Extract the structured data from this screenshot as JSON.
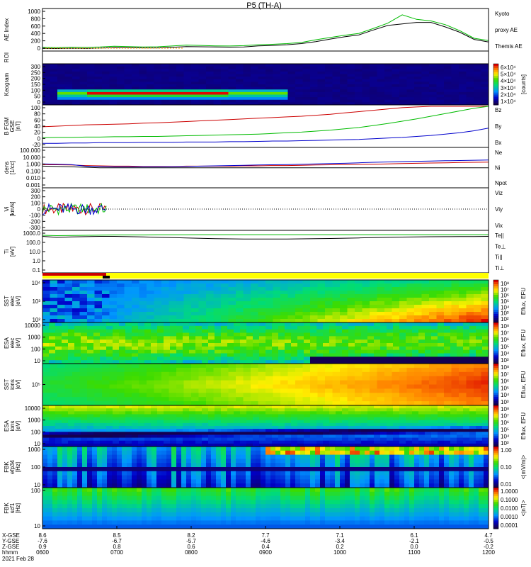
{
  "chart_data": {
    "type": "spectrogram-stack",
    "title": "P5 (TH-A)",
    "date": "2021 Feb 28",
    "colors": {
      "red": "#cc0000",
      "green": "#00bb00",
      "blue": "#0000cc",
      "black": "#000000",
      "orange": "#ff9900"
    },
    "panels": [
      {
        "id": "ae",
        "ylabel": "AE Index",
        "yticks": [
          "1000",
          "800",
          "600",
          "400",
          "200",
          "0"
        ],
        "legend": [
          {
            "text": "Kyoto",
            "color": "#00bb00"
          },
          {
            "text": "proxy AE",
            "color": "#00bb00"
          },
          {
            "text": "Themis AE",
            "color": "#000000"
          }
        ],
        "series": [
          {
            "name": "Kyoto proxy AE",
            "values": [
              60,
              55,
              65,
              60,
              70,
              90,
              80,
              70,
              75,
              95,
              120,
              110,
              100,
              95,
              105,
              130,
              140,
              160,
              190,
              260,
              320,
              380,
              430,
              560,
              700,
              920,
              800,
              760,
              660,
              500,
              300,
              240
            ]
          },
          {
            "name": "Themis AE",
            "values": [
              30,
              28,
              35,
              30,
              40,
              55,
              50,
              45,
              45,
              60,
              80,
              75,
              70,
              65,
              70,
              100,
              110,
              130,
              160,
              210,
              280,
              340,
              390,
              520,
              640,
              680,
              720,
              720,
              600,
              460,
              270,
              200
            ]
          }
        ]
      },
      {
        "id": "roi",
        "ylabel": "ROI"
      },
      {
        "id": "keogram",
        "ylabel": "Keogram",
        "yticks": [
          "300",
          "250",
          "200",
          "150",
          "100",
          "50",
          "0"
        ],
        "cbar_ticks": [
          "6×10⁴",
          "5×10⁴",
          "4×10⁴",
          "3×10⁴",
          "2×10⁴",
          "1×10⁴"
        ],
        "cbar_label": "[counts]"
      },
      {
        "id": "bfgm",
        "ylabel": "B FGM",
        "ylabel2": "GSE",
        "ylabel3": "[nT]",
        "yticks": [
          "100",
          "80",
          "60",
          "40",
          "20",
          "0",
          "-20"
        ],
        "legend": [
          {
            "text": "Bz",
            "color": "#cc0000"
          },
          {
            "text": "By",
            "color": "#00bb00"
          },
          {
            "text": "Bx",
            "color": "#0000cc"
          }
        ],
        "series": [
          {
            "name": "Bz",
            "values": [
              38,
              40,
              42,
              44,
              45,
              46,
              47,
              49,
              50,
              52,
              54,
              56,
              58,
              60,
              62,
              64,
              66,
              68,
              70,
              73,
              76,
              80,
              84,
              88,
              92,
              96,
              98,
              100,
              100,
              100,
              100,
              100
            ]
          },
          {
            "name": "By",
            "values": [
              5,
              6,
              6,
              7,
              7,
              8,
              8,
              9,
              9,
              10,
              11,
              12,
              13,
              14,
              15,
              16,
              18,
              20,
              22,
              25,
              28,
              32,
              36,
              42,
              48,
              55,
              62,
              70,
              78,
              86,
              94,
              100
            ]
          },
          {
            "name": "Bx",
            "values": [
              -12,
              -12,
              -11,
              -11,
              -10,
              -10,
              -10,
              -9,
              -9,
              -9,
              -8,
              -8,
              -8,
              -7,
              -7,
              -6,
              -5,
              -5,
              -4,
              -3,
              -2,
              -1,
              0,
              2,
              4,
              6,
              9,
              12,
              16,
              20,
              26,
              34
            ]
          }
        ]
      },
      {
        "id": "dens",
        "ylabel": "dens",
        "ylabel2": "[1/cc]",
        "yticks": [
          "100.000",
          "10.000",
          "1.000",
          "0.100",
          "0.010",
          "0.001"
        ],
        "legend": [
          {
            "text": "Ne",
            "color": "#cc0000"
          },
          {
            "text": "Ni",
            "color": "#000000"
          },
          {
            "text": "Npot",
            "color": "#0000cc"
          }
        ],
        "series": [
          {
            "name": "Ne",
            "values": [
              0.8,
              0.75,
              0.7,
              0.6,
              0.55,
              0.5,
              0.5,
              0.45,
              0.45,
              0.45,
              0.5,
              0.5,
              0.5,
              0.5,
              0.55,
              0.55,
              0.6,
              0.6,
              0.65,
              0.7,
              0.75,
              0.8,
              0.85,
              0.9,
              1.0,
              1.1,
              1.2,
              1.3,
              1.4,
              1.5,
              1.6,
              1.7
            ]
          },
          {
            "name": "Ni",
            "values": [
              0.5,
              0.45,
              0.4,
              0.35,
              0.3,
              0.3,
              0.3,
              0.3,
              0.3,
              0.3,
              0.3,
              0.3,
              0.3,
              0.3,
              0.3,
              0.3,
              0.3,
              0.3,
              0.3,
              0.3,
              0.3,
              0.3,
              0.3,
              0.3,
              0.3,
              0.3,
              0.3,
              0.3,
              0.3,
              0.3,
              0.3,
              0.3
            ]
          },
          {
            "name": "Npot",
            "values": [
              1.0,
              0.9,
              0.8,
              0.5,
              0.45,
              0.4,
              0.4,
              0.4,
              0.4,
              0.42,
              0.45,
              0.5,
              0.55,
              0.6,
              0.65,
              0.7,
              0.75,
              0.8,
              0.9,
              1.0,
              1.1,
              1.2,
              1.4,
              1.6,
              1.8,
              2.0,
              2.2,
              2.4,
              2.6,
              2.8,
              3.0,
              3.2
            ]
          }
        ]
      },
      {
        "id": "vi",
        "ylabel": "Vi",
        "ylabel2": "[km/s]",
        "yticks": [
          "300",
          "200",
          "100",
          "0",
          "-100",
          "-200",
          "-300"
        ],
        "legend": [
          {
            "text": "Viz",
            "color": "#cc0000"
          },
          {
            "text": "Viy",
            "color": "#00bb00"
          },
          {
            "text": "Vix",
            "color": "#0000cc"
          }
        ]
      },
      {
        "id": "temp",
        "ylabel": "Ti",
        "ylabel2": "[eV]",
        "yticks": [
          "1000.0",
          "100.0",
          "10.0",
          "1.0",
          "0.1"
        ],
        "legend": [
          {
            "text": "Te||",
            "color": "#000000"
          },
          {
            "text": "Te⊥",
            "color": "#cc0000"
          },
          {
            "text": "Ti||",
            "color": "#00bb00"
          },
          {
            "text": "Ti⊥",
            "color": "#0000cc"
          }
        ],
        "series": [
          {
            "name": "Te",
            "values": [
              900,
              700,
              800,
              850,
              900,
              900,
              850,
              800,
              700,
              650,
              600,
              550,
              500,
              480,
              460,
              450,
              450,
              460,
              480,
              500,
              520,
              560,
              600,
              650,
              700,
              750,
              800,
              820,
              850,
              860,
              880,
              900
            ]
          },
          {
            "name": "Ti",
            "values": [
              1200,
              1100,
              1150,
              1200,
              1250,
              1300,
              1300,
              1300,
              1350,
              1350,
              1350,
              1400,
              1400,
              1400,
              1400,
              1400,
              1400,
              1400,
              1400,
              1400,
              1400,
              1400,
              1400,
              1400,
              1400,
              1400,
              1400,
              1400,
              1400,
              1400,
              1400,
              1400
            ]
          }
        ]
      },
      {
        "id": "sst_e",
        "ylabel": "SST",
        "ylabel2": "elec",
        "ylabel3": "[eV]",
        "yticks": [
          "10⁴",
          "10³",
          "10²"
        ],
        "cbar_ticks": [
          "10⁸",
          "10⁷",
          "10⁶",
          "10⁵",
          "10⁴",
          "10³",
          "10²"
        ],
        "cbar_label": "Eflux, EFU"
      },
      {
        "id": "esa_e",
        "ylabel": "ESA",
        "ylabel2": "elec",
        "ylabel3": "[eV]",
        "yticks": [
          "10000",
          "1000",
          "100",
          "10"
        ],
        "cbar_ticks": [
          "10⁸",
          "10⁷",
          "10⁶",
          "10⁵",
          "10⁴",
          "10³"
        ],
        "cbar_label": "Eflux, EFU"
      },
      {
        "id": "sst_i",
        "ylabel": "SST",
        "ylabel2": "ions",
        "ylabel3": "[eV]",
        "yticks": [
          "10⁵"
        ],
        "cbar_ticks": [
          "10⁸",
          "10⁷",
          "10⁶",
          "10⁵",
          "10⁴",
          "10³"
        ],
        "cbar_label": "Eflux, EFU"
      },
      {
        "id": "esa_i",
        "ylabel": "ESA",
        "ylabel2": "ions",
        "ylabel3": "[eV]",
        "yticks": [
          "10000",
          "1000",
          "100",
          "10"
        ],
        "cbar_ticks": [
          "10⁸",
          "10⁷",
          "10⁶",
          "10⁵",
          "10⁴",
          "10³"
        ],
        "cbar_label": "Eflux, EFU"
      },
      {
        "id": "fbk_e",
        "ylabel": "FBK",
        "ylabel2": "efp34",
        "ylabel3": "[Hz]",
        "yticks": [
          "1000",
          "100",
          "10"
        ],
        "cbar_ticks": [
          "1.00",
          "0.10",
          "0.01"
        ],
        "cbar_label": "<|mV/m|>"
      },
      {
        "id": "fbk_b",
        "ylabel": "FBK",
        "ylabel2": "scf1",
        "ylabel3": "[Hz]",
        "yticks": [
          "100",
          "10"
        ],
        "cbar_ticks": [
          "1.0000",
          "0.1000",
          "0.0100",
          "0.0010",
          "0.0001"
        ],
        "cbar_label": "<|nT|>"
      }
    ],
    "xaxis": {
      "row_labels": [
        "X-GSE",
        "Y-GSE",
        "Z-GSE",
        "hhmm"
      ],
      "ticks": [
        {
          "values": [
            "8.6",
            "-7.6",
            "0.9",
            "0600"
          ]
        },
        {
          "values": [
            "8.5",
            "-6.7",
            "0.8",
            "0700"
          ]
        },
        {
          "values": [
            "8.2",
            "-5.7",
            "0.6",
            "0800"
          ]
        },
        {
          "values": [
            "7.7",
            "-4.6",
            "0.4",
            "0900"
          ]
        },
        {
          "values": [
            "7.1",
            "-3.4",
            "0.2",
            "1000"
          ]
        },
        {
          "values": [
            "6.1",
            "-2.1",
            "0.0",
            "1100"
          ]
        },
        {
          "values": [
            "4.7",
            "-0.5",
            "-0.2",
            "1200"
          ]
        }
      ]
    }
  }
}
